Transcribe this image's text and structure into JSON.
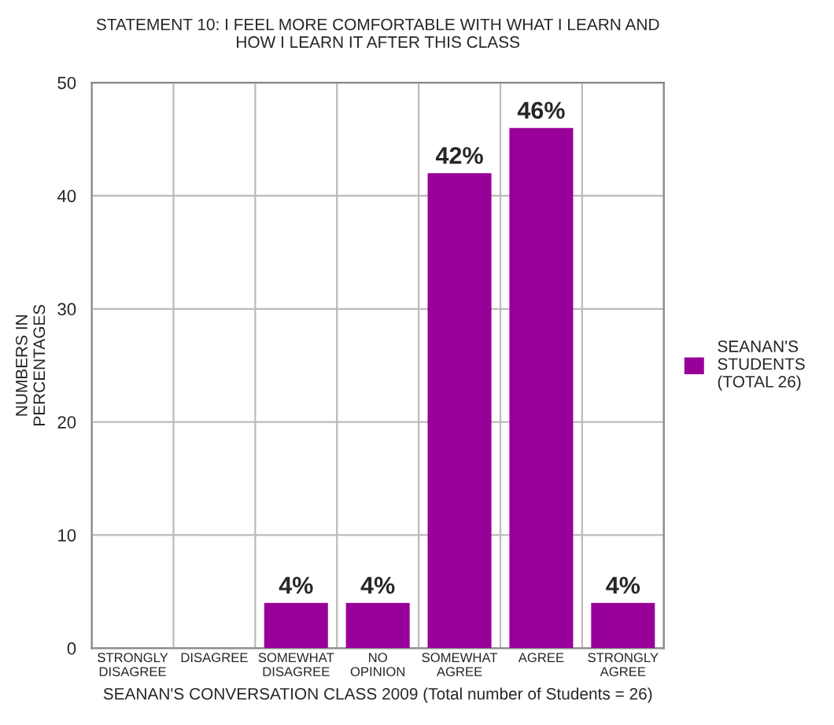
{
  "chart_data": {
    "type": "bar",
    "title": "STATEMENT 10: I FEEL MORE COMFORTABLE WITH WHAT I LEARN AND\nHOW I LEARN IT AFTER THIS CLASS",
    "xlabel": "SEANAN'S CONVERSATION CLASS 2009 (Total number of Students = 26)",
    "ylabel": "NUMBERS IN\nPERCENTAGES",
    "categories": [
      "STRONGLY\nDISAGREE",
      "DISAGREE",
      "SOMEWHAT\nDISAGREE",
      "NO\nOPINION",
      "SOMEWHAT\nAGREE",
      "AGREE",
      "STRONGLY\nAGREE"
    ],
    "series": [
      {
        "name": "SEANAN'S\nSTUDENTS\n(TOTAL 26)",
        "color": "#990099",
        "values": [
          0,
          0,
          4,
          4,
          42,
          46,
          4
        ],
        "value_labels": [
          null,
          null,
          "4%",
          "4%",
          "42%",
          "46%",
          "4%"
        ]
      }
    ],
    "ylim": [
      0,
      50
    ],
    "yticks": [
      0,
      10,
      20,
      30,
      40,
      50
    ],
    "grid": true,
    "legend": "right"
  }
}
